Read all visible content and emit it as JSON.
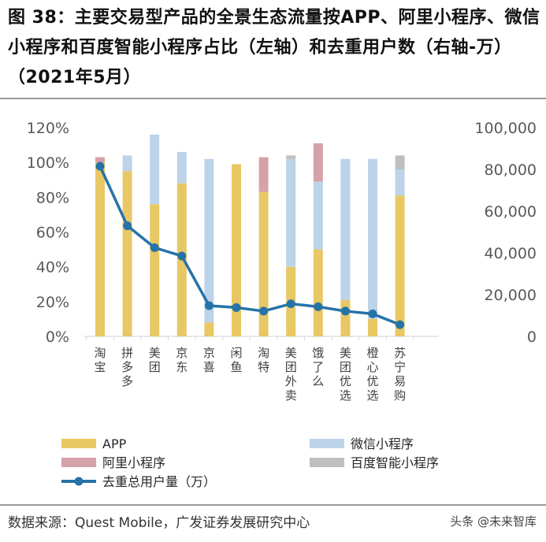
{
  "header": {
    "title": "图 38：主要交易型产品的全景生态流量按APP、阿里小程序、微信小程序和百度智能小程序占比（左轴）和去重用户数（右轴-万）（2021年5月）"
  },
  "footer": {
    "source": "数据来源：Quest Mobile，广发证券发展研究中心",
    "watermark": "头条 @未来智库"
  },
  "colors": {
    "app": "#E8C864",
    "wechat": "#BCD3E9",
    "alipay": "#D4A2A8",
    "baidu": "#BFBFBF",
    "line": "#2673A8",
    "axis_text": "#595959",
    "baseline": "#D9D9D9"
  },
  "chart_data": {
    "type": "bar",
    "stacked": true,
    "title": "",
    "categories": [
      "淘宝",
      "拼多多",
      "美团",
      "京东",
      "京喜",
      "闲鱼",
      "淘特",
      "美团外卖",
      "饿了么",
      "美团优选",
      "橙心优选",
      "苏宁易购"
    ],
    "series": [
      {
        "name": "APP",
        "axis": "left",
        "values": [
          100,
          95,
          76,
          88,
          8,
          99,
          83,
          40,
          50,
          21,
          10,
          81
        ]
      },
      {
        "name": "微信小程序",
        "axis": "left",
        "values": [
          0,
          9,
          40,
          18,
          94,
          0,
          0,
          62,
          39,
          81,
          92,
          15
        ]
      },
      {
        "name": "阿里小程序",
        "axis": "left",
        "values": [
          3,
          0,
          0,
          0,
          0,
          0,
          20,
          0,
          22,
          0,
          0,
          0
        ]
      },
      {
        "name": "百度智能小程序",
        "axis": "left",
        "values": [
          0,
          0,
          0,
          0,
          0,
          0,
          0,
          2,
          0,
          0,
          0,
          8
        ]
      },
      {
        "name": "去重总用户量（万）",
        "axis": "right",
        "type": "line",
        "values": [
          81500,
          53000,
          42500,
          38500,
          14700,
          13800,
          12100,
          15600,
          14200,
          12100,
          10800,
          5600
        ]
      }
    ],
    "left_axis": {
      "min": 0,
      "max": 120,
      "ticks": [
        "0%",
        "20%",
        "40%",
        "60%",
        "80%",
        "100%",
        "120%"
      ]
    },
    "right_axis": {
      "min": 0,
      "max": 100000,
      "ticks": [
        "0",
        "20,000",
        "40,000",
        "60,000",
        "80,000",
        "100,000"
      ]
    },
    "grid": false,
    "legend_position": "bottom"
  }
}
